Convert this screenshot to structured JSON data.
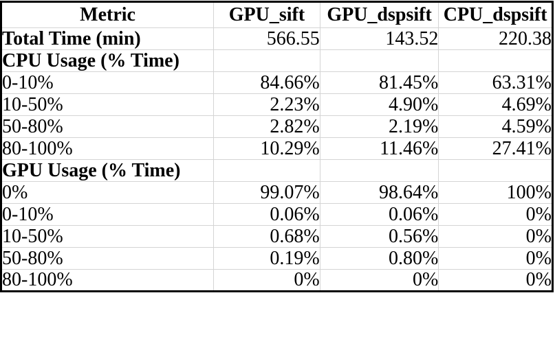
{
  "chart_data": {
    "type": "table",
    "columns": [
      "Metric",
      "GPU_sift",
      "GPU_dspsift",
      "CPU_dspsift"
    ],
    "rows": [
      {
        "metric": "Total Time (min)",
        "bold": true,
        "values": [
          "566.55",
          "143.52",
          "220.38"
        ]
      },
      {
        "metric": "CPU Usage (% Time)",
        "bold": true,
        "values": [
          "",
          "",
          ""
        ]
      },
      {
        "metric": "0-10%",
        "bold": false,
        "values": [
          "84.66%",
          "81.45%",
          "63.31%"
        ]
      },
      {
        "metric": "10-50%",
        "bold": false,
        "values": [
          "2.23%",
          "4.90%",
          "4.69%"
        ]
      },
      {
        "metric": "50-80%",
        "bold": false,
        "values": [
          "2.82%",
          "2.19%",
          "4.59%"
        ]
      },
      {
        "metric": "80-100%",
        "bold": false,
        "values": [
          "10.29%",
          "11.46%",
          "27.41%"
        ]
      },
      {
        "metric": "GPU Usage (% Time)",
        "bold": true,
        "values": [
          "",
          "",
          ""
        ]
      },
      {
        "metric": "0%",
        "bold": false,
        "values": [
          "99.07%",
          "98.64%",
          "100%"
        ]
      },
      {
        "metric": "0-10%",
        "bold": false,
        "values": [
          "0.06%",
          "0.06%",
          "0%"
        ]
      },
      {
        "metric": "10-50%",
        "bold": false,
        "values": [
          "0.68%",
          "0.56%",
          "0%"
        ]
      },
      {
        "metric": "50-80%",
        "bold": false,
        "values": [
          "0.19%",
          "0.80%",
          "0%"
        ]
      },
      {
        "metric": "80-100%",
        "bold": false,
        "values": [
          "0%",
          "0%",
          "0%"
        ]
      }
    ]
  },
  "colors": {
    "border_outer": "#000000",
    "gridline": "#d4d4d4",
    "text": "#000000",
    "background": "#ffffff"
  }
}
